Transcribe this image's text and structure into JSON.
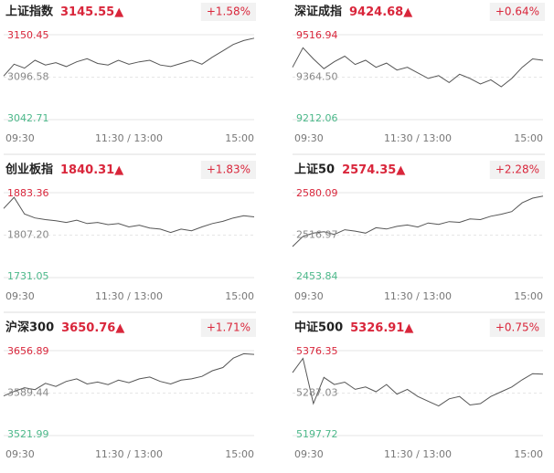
{
  "chart_data": [
    {
      "type": "line",
      "title": "上证指数",
      "price": 3145.55,
      "arrow": "▲",
      "change": "+1.58%",
      "color": "#555",
      "xlim": [
        0,
        240
      ],
      "xticks": [
        {
          "value": 0,
          "label": "09:30"
        },
        {
          "value": 120,
          "label": "11:30 / 13:00"
        },
        {
          "value": 240,
          "label": "15:00"
        }
      ],
      "ylim": [
        3042.71,
        3150.45
      ],
      "yticks": [
        3042.71,
        3096.58,
        3150.45
      ],
      "x": [
        0,
        10,
        20,
        30,
        40,
        50,
        60,
        70,
        80,
        90,
        100,
        110,
        120,
        130,
        140,
        150,
        160,
        170,
        180,
        190,
        200,
        210,
        220,
        230,
        240
      ],
      "values": [
        3098,
        3113,
        3108,
        3118,
        3112,
        3115,
        3110,
        3116,
        3120,
        3114,
        3112,
        3118,
        3113,
        3116,
        3118,
        3112,
        3110,
        3114,
        3118,
        3113,
        3122,
        3130,
        3138,
        3143,
        3146
      ]
    },
    {
      "type": "line",
      "title": "深证成指",
      "price": 9424.68,
      "arrow": "▲",
      "change": "+0.64%",
      "color": "#555",
      "xlim": [
        0,
        240
      ],
      "xticks": [
        {
          "value": 0,
          "label": "09:30"
        },
        {
          "value": 120,
          "label": "11:30 / 13:00"
        },
        {
          "value": 240,
          "label": "15:00"
        }
      ],
      "ylim": [
        9212.06,
        9516.94
      ],
      "yticks": [
        9212.06,
        {
          "value": 9364.5,
          "label": "9364.50"
        },
        9516.94
      ],
      "x": [
        0,
        10,
        20,
        30,
        40,
        50,
        60,
        70,
        80,
        90,
        100,
        110,
        120,
        130,
        140,
        150,
        160,
        170,
        180,
        190,
        200,
        210,
        220,
        230,
        240
      ],
      "values": [
        9400,
        9470,
        9430,
        9395,
        9420,
        9440,
        9410,
        9425,
        9400,
        9415,
        9390,
        9400,
        9380,
        9360,
        9370,
        9345,
        9375,
        9360,
        9340,
        9355,
        9330,
        9360,
        9400,
        9430,
        9425
      ]
    },
    {
      "type": "line",
      "title": "创业板指",
      "price": 1840.31,
      "arrow": "▲",
      "change": "+1.83%",
      "color": "#555",
      "xlim": [
        0,
        240
      ],
      "xticks": [
        {
          "value": 0,
          "label": "09:30"
        },
        {
          "value": 120,
          "label": "11:30 / 13:00"
        },
        {
          "value": 240,
          "label": "15:00"
        }
      ],
      "ylim": [
        1731.05,
        1883.36
      ],
      "yticks": [
        1731.05,
        {
          "value": 1807.2,
          "label": "1807.20"
        },
        1883.36
      ],
      "x": [
        0,
        10,
        20,
        30,
        40,
        50,
        60,
        70,
        80,
        90,
        100,
        110,
        120,
        130,
        140,
        150,
        160,
        170,
        180,
        190,
        200,
        210,
        220,
        230,
        240
      ],
      "values": [
        1855,
        1875,
        1845,
        1838,
        1835,
        1833,
        1830,
        1834,
        1828,
        1830,
        1826,
        1828,
        1822,
        1825,
        1820,
        1818,
        1812,
        1818,
        1815,
        1822,
        1828,
        1832,
        1838,
        1842,
        1840
      ]
    },
    {
      "type": "line",
      "title": "上证50",
      "price": 2574.35,
      "arrow": "▲",
      "change": "+2.28%",
      "color": "#555",
      "xlim": [
        0,
        240
      ],
      "xticks": [
        {
          "value": 0,
          "label": "09:30"
        },
        {
          "value": 120,
          "label": "11:30 / 13:00"
        },
        {
          "value": 240,
          "label": "15:00"
        }
      ],
      "ylim": [
        2453.84,
        2580.09
      ],
      "yticks": [
        2453.84,
        2516.97,
        2580.09
      ],
      "x": [
        0,
        10,
        20,
        30,
        40,
        50,
        60,
        70,
        80,
        90,
        100,
        110,
        120,
        130,
        140,
        150,
        160,
        170,
        180,
        190,
        200,
        210,
        220,
        230,
        240
      ],
      "values": [
        2500,
        2515,
        2520,
        2522,
        2518,
        2525,
        2523,
        2520,
        2528,
        2526,
        2530,
        2532,
        2529,
        2535,
        2533,
        2537,
        2536,
        2541,
        2540,
        2545,
        2548,
        2552,
        2565,
        2572,
        2575
      ]
    },
    {
      "type": "line",
      "title": "沪深300",
      "price": 3650.76,
      "arrow": "▲",
      "change": "+1.71%",
      "color": "#555",
      "xlim": [
        0,
        240
      ],
      "xticks": [
        {
          "value": 0,
          "label": "09:30"
        },
        {
          "value": 120,
          "label": "11:30 / 13:00"
        },
        {
          "value": 240,
          "label": "15:00"
        }
      ],
      "ylim": [
        3521.99,
        3656.89
      ],
      "yticks": [
        3521.99,
        3589.44,
        3656.89
      ],
      "x": [
        0,
        10,
        20,
        30,
        40,
        50,
        60,
        70,
        80,
        90,
        100,
        110,
        120,
        130,
        140,
        150,
        160,
        170,
        180,
        190,
        200,
        210,
        220,
        230,
        240
      ],
      "values": [
        3585,
        3592,
        3598,
        3595,
        3605,
        3600,
        3608,
        3612,
        3604,
        3607,
        3603,
        3610,
        3606,
        3612,
        3615,
        3608,
        3604,
        3610,
        3612,
        3616,
        3625,
        3630,
        3645,
        3652,
        3651
      ]
    },
    {
      "type": "line",
      "title": "中证500",
      "price": 5326.91,
      "arrow": "▲",
      "change": "+0.75%",
      "color": "#555",
      "xlim": [
        0,
        240
      ],
      "xticks": [
        {
          "value": 0,
          "label": "09:30"
        },
        {
          "value": 120,
          "label": "11:30 / 13:00"
        },
        {
          "value": 240,
          "label": "15:00"
        }
      ],
      "ylim": [
        5197.72,
        5376.35
      ],
      "yticks": [
        5197.72,
        5287.03,
        5376.35
      ],
      "x": [
        0,
        10,
        20,
        30,
        40,
        50,
        60,
        70,
        80,
        90,
        100,
        110,
        120,
        130,
        140,
        150,
        160,
        170,
        180,
        190,
        200,
        210,
        220,
        230,
        240
      ],
      "values": [
        5330,
        5360,
        5265,
        5320,
        5305,
        5310,
        5295,
        5300,
        5290,
        5305,
        5285,
        5295,
        5280,
        5270,
        5260,
        5275,
        5280,
        5262,
        5265,
        5280,
        5290,
        5300,
        5315,
        5328,
        5327
      ]
    }
  ]
}
